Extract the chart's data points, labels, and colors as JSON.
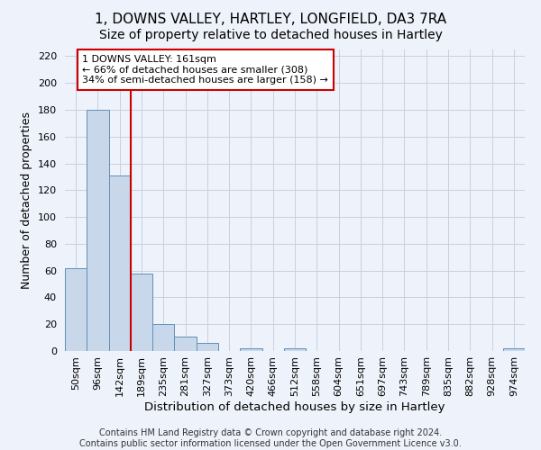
{
  "title": "1, DOWNS VALLEY, HARTLEY, LONGFIELD, DA3 7RA",
  "subtitle": "Size of property relative to detached houses in Hartley",
  "xlabel": "Distribution of detached houses by size in Hartley",
  "ylabel": "Number of detached properties",
  "footer_lines": [
    "Contains HM Land Registry data © Crown copyright and database right 2024.",
    "Contains public sector information licensed under the Open Government Licence v3.0."
  ],
  "bin_labels": [
    "50sqm",
    "96sqm",
    "142sqm",
    "189sqm",
    "235sqm",
    "281sqm",
    "327sqm",
    "373sqm",
    "420sqm",
    "466sqm",
    "512sqm",
    "558sqm",
    "604sqm",
    "651sqm",
    "697sqm",
    "743sqm",
    "789sqm",
    "835sqm",
    "882sqm",
    "928sqm",
    "974sqm"
  ],
  "bar_values": [
    62,
    180,
    131,
    58,
    20,
    11,
    6,
    0,
    2,
    0,
    2,
    0,
    0,
    0,
    0,
    0,
    0,
    0,
    0,
    0,
    2
  ],
  "bar_color": "#c8d8ea",
  "bar_edge_color": "#6090b8",
  "grid_color": "#c8d0e0",
  "background_color": "#eef2fa",
  "vline_color": "#cc0000",
  "annotation_line1": "1 DOWNS VALLEY: 161sqm",
  "annotation_line2": "← 66% of detached houses are smaller (308)",
  "annotation_line3": "34% of semi-detached houses are larger (158) →",
  "ylim": [
    0,
    225
  ],
  "yticks": [
    0,
    20,
    40,
    60,
    80,
    100,
    120,
    140,
    160,
    180,
    200,
    220
  ],
  "title_fontsize": 11,
  "subtitle_fontsize": 10,
  "xlabel_fontsize": 9.5,
  "ylabel_fontsize": 9,
  "tick_fontsize": 8,
  "footer_fontsize": 7,
  "annotation_fontsize": 8
}
